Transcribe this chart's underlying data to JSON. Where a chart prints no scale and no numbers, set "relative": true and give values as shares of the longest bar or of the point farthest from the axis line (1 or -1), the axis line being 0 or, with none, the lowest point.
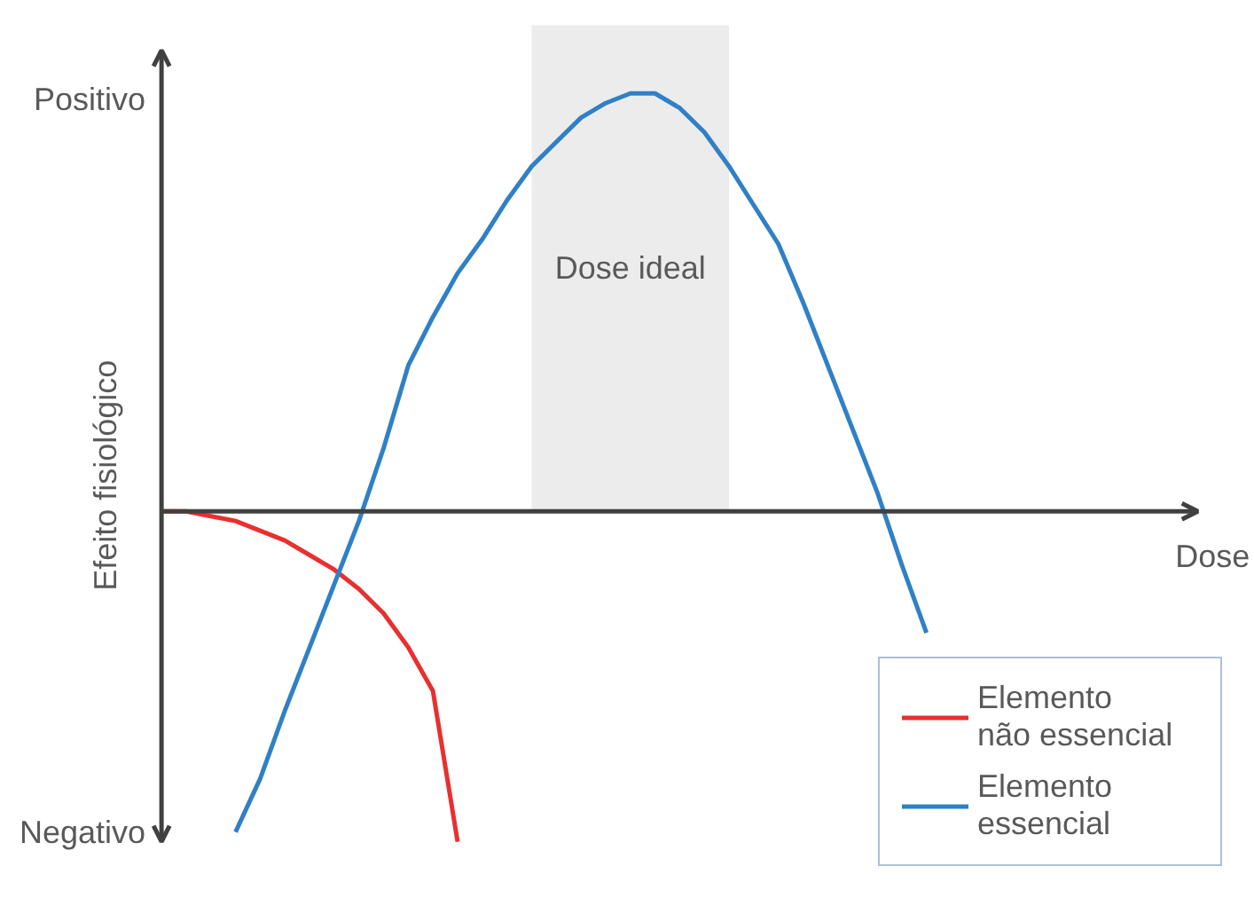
{
  "chart_data": {
    "type": "line",
    "relative": true,
    "xlabel": "Dose",
    "ylabel": "Efeito fisiológico",
    "annotations": [
      "Positivo",
      "Negativo"
    ],
    "legend": "bottom right",
    "categories": [
      null,
      null,
      null,
      null,
      null,
      null,
      null,
      null,
      null,
      null,
      null,
      null,
      null,
      null,
      null,
      null,
      null,
      null,
      null,
      null,
      null,
      null,
      null,
      null,
      null,
      null,
      null,
      null,
      null,
      null,
      null,
      null,
      null,
      null,
      null,
      null,
      null,
      null,
      null,
      null,
      null,
      null,
      null
    ],
    "series": [
      {
        "name": "Elemento não essencial",
        "color": "#e8302f",
        "values": [
          0,
          0,
          -0.01,
          -0.02,
          -0.04,
          -0.06,
          -0.09,
          -0.12,
          -0.16,
          -0.21,
          -0.28,
          -0.37,
          -0.68,
          null,
          null,
          null,
          null,
          null,
          null,
          null,
          null,
          null,
          null,
          null,
          null,
          null,
          null,
          null,
          null,
          null,
          null,
          null,
          null,
          null,
          null,
          null,
          null,
          null,
          null,
          null,
          null,
          null,
          null
        ]
      },
      {
        "name": "Elemento essencial",
        "color": "#2f80c6",
        "values": [
          null,
          null,
          null,
          -0.66,
          -0.55,
          -0.41,
          -0.28,
          -0.15,
          -0.02,
          0.13,
          0.3,
          0.4,
          0.49,
          0.56,
          0.64,
          0.71,
          0.76,
          0.81,
          0.84,
          0.86,
          0.86,
          0.83,
          0.78,
          0.71,
          0.63,
          0.55,
          0.43,
          0.3,
          0.17,
          0.04,
          -0.11,
          -0.25,
          null,
          null,
          null,
          null,
          null,
          null,
          null,
          null,
          null,
          null,
          null
        ]
      },
      {
        "name": "Dose ideal",
        "type": "area",
        "color": "#ececec",
        "values": [
          null,
          null,
          null,
          null,
          null,
          null,
          null,
          null,
          null,
          null,
          null,
          null,
          null,
          null,
          null,
          1,
          1,
          1,
          1,
          1,
          1,
          1,
          1,
          1,
          null,
          null,
          null,
          null,
          null,
          null,
          null,
          null,
          null,
          null,
          null,
          null,
          null,
          null,
          null,
          null,
          null,
          null,
          null
        ]
      }
    ]
  }
}
